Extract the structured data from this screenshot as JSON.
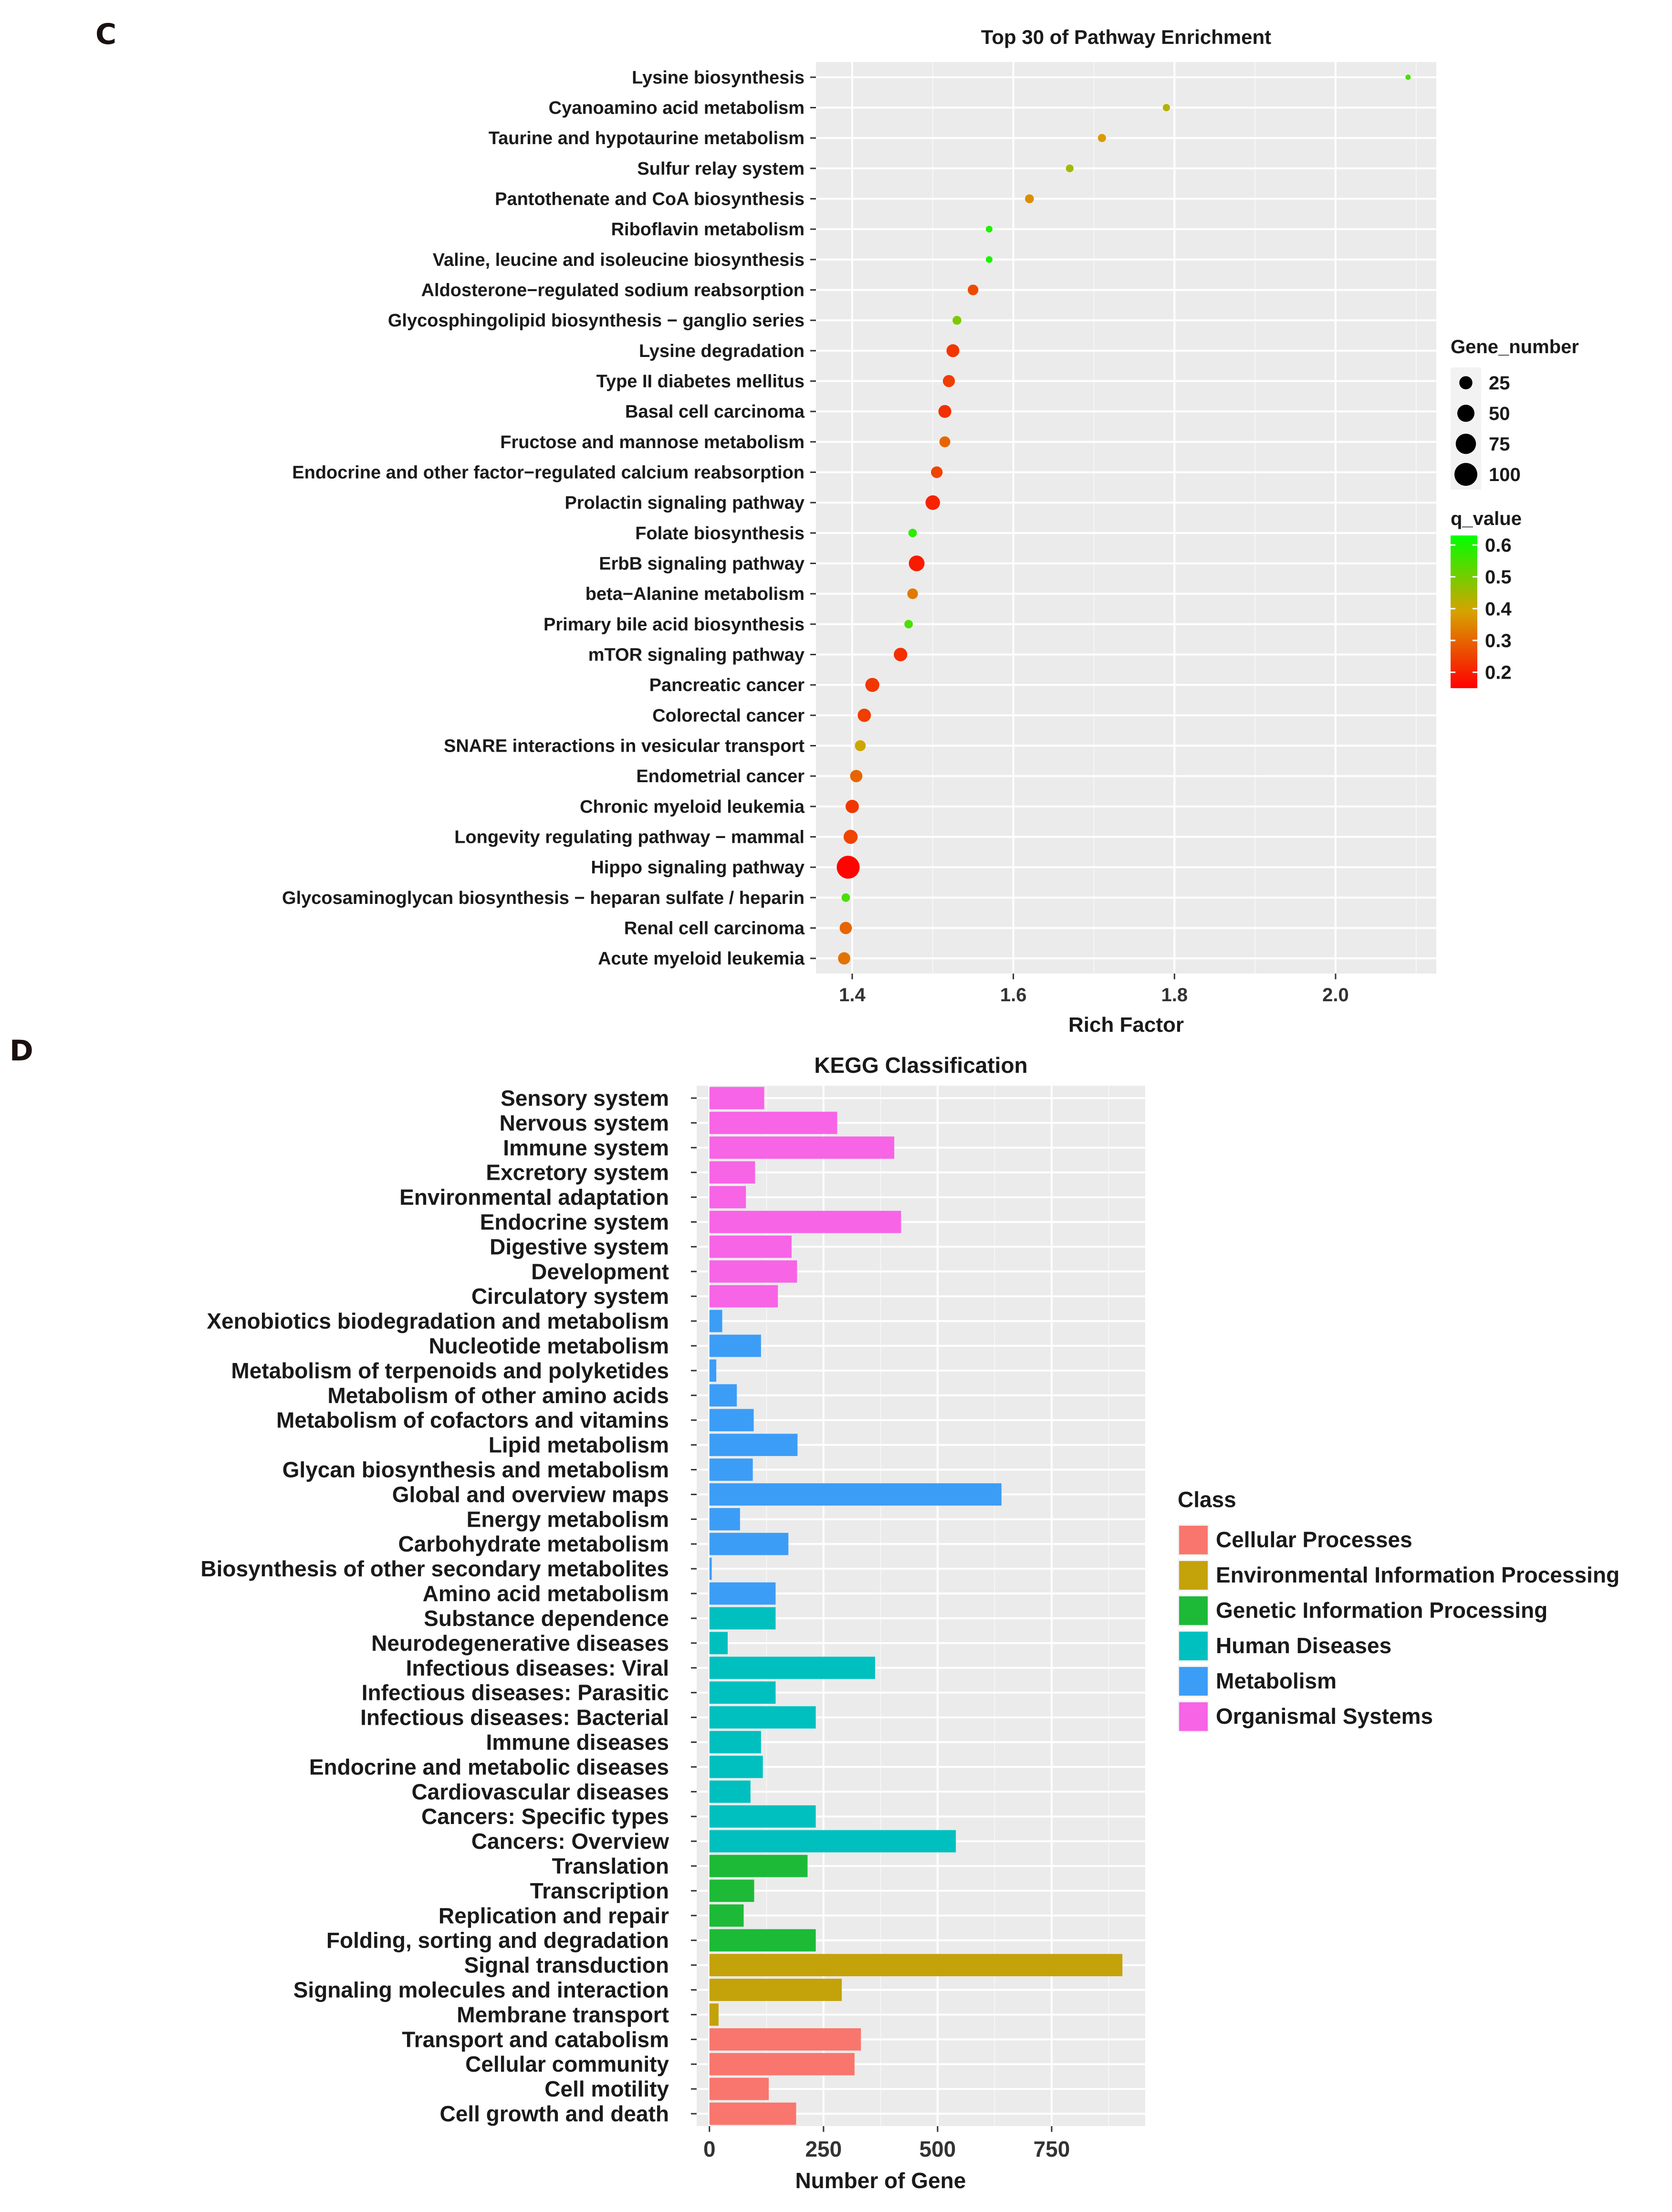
{
  "panel_labels": {
    "c": "C",
    "d": "D"
  },
  "chart_data": [
    {
      "type": "scatter",
      "title": "Top 30 of Pathway Enrichment",
      "xlabel": "Rich Factor",
      "ylabel": "",
      "xlim": [
        1.355,
        2.125
      ],
      "xticks": [
        1.4,
        1.6,
        1.8,
        2.0
      ],
      "xtick_labels": [
        "1.4",
        "1.6",
        "1.8",
        "2.0"
      ],
      "grid": true,
      "legend_position": "right",
      "size_legend": {
        "title": "Gene_number",
        "values": [
          25,
          50,
          75,
          100
        ],
        "labels": [
          "25",
          "50",
          "75",
          "100"
        ]
      },
      "color_legend": {
        "title": "q_value",
        "range": [
          0.15,
          0.63
        ],
        "ticks": [
          0.6,
          0.5,
          0.4,
          0.3,
          0.2
        ],
        "tick_labels": [
          "0.6",
          "0.5",
          "0.4",
          "0.3",
          "0.2"
        ],
        "low_color": "#ff0000",
        "mid_color": "#d7a200",
        "high_color": "#00ff00"
      },
      "points": [
        {
          "pathway": "Lysine biosynthesis",
          "rich_factor": 2.09,
          "gene_number": 1,
          "q_value": 0.55
        },
        {
          "pathway": "Cyanoamino acid metabolism",
          "rich_factor": 1.79,
          "gene_number": 4,
          "q_value": 0.43
        },
        {
          "pathway": "Taurine and hypotaurine metabolism",
          "rich_factor": 1.71,
          "gene_number": 6,
          "q_value": 0.38
        },
        {
          "pathway": "Sulfur relay system",
          "rich_factor": 1.67,
          "gene_number": 5,
          "q_value": 0.45
        },
        {
          "pathway": "Pantothenate and CoA biosynthesis",
          "rich_factor": 1.62,
          "gene_number": 8,
          "q_value": 0.36
        },
        {
          "pathway": "Riboflavin metabolism",
          "rich_factor": 1.57,
          "gene_number": 3,
          "q_value": 0.6
        },
        {
          "pathway": "Valine, leucine and isoleucine biosynthesis",
          "rich_factor": 1.57,
          "gene_number": 3,
          "q_value": 0.6
        },
        {
          "pathway": "Aldosterone−regulated sodium reabsorption",
          "rich_factor": 1.55,
          "gene_number": 14,
          "q_value": 0.26
        },
        {
          "pathway": "Glycosphingolipid biosynthesis − ganglio series",
          "rich_factor": 1.53,
          "gene_number": 8,
          "q_value": 0.49
        },
        {
          "pathway": "Lysine degradation",
          "rich_factor": 1.525,
          "gene_number": 24,
          "q_value": 0.23
        },
        {
          "pathway": "Type II diabetes mellitus",
          "rich_factor": 1.52,
          "gene_number": 20,
          "q_value": 0.24
        },
        {
          "pathway": "Basal cell carcinoma",
          "rich_factor": 1.515,
          "gene_number": 24,
          "q_value": 0.22
        },
        {
          "pathway": "Fructose and mannose metabolism",
          "rich_factor": 1.515,
          "gene_number": 15,
          "q_value": 0.3
        },
        {
          "pathway": "Endocrine and other factor−regulated calcium reabsorption",
          "rich_factor": 1.505,
          "gene_number": 18,
          "q_value": 0.25
        },
        {
          "pathway": "Prolactin signaling pathway",
          "rich_factor": 1.5,
          "gene_number": 33,
          "q_value": 0.2
        },
        {
          "pathway": "Folate biosynthesis",
          "rich_factor": 1.475,
          "gene_number": 7,
          "q_value": 0.58
        },
        {
          "pathway": "ErbB signaling pathway",
          "rich_factor": 1.48,
          "gene_number": 40,
          "q_value": 0.19
        },
        {
          "pathway": "beta−Alanine metabolism",
          "rich_factor": 1.475,
          "gene_number": 14,
          "q_value": 0.33
        },
        {
          "pathway": "Primary bile acid biosynthesis",
          "rich_factor": 1.47,
          "gene_number": 7,
          "q_value": 0.55
        },
        {
          "pathway": "mTOR signaling pathway",
          "rich_factor": 1.46,
          "gene_number": 27,
          "q_value": 0.22
        },
        {
          "pathway": "Pancreatic cancer",
          "rich_factor": 1.425,
          "gene_number": 30,
          "q_value": 0.23
        },
        {
          "pathway": "Colorectal cancer",
          "rich_factor": 1.415,
          "gene_number": 26,
          "q_value": 0.24
        },
        {
          "pathway": "SNARE interactions in vesicular transport",
          "rich_factor": 1.41,
          "gene_number": 15,
          "q_value": 0.4
        },
        {
          "pathway": "Endometrial cancer",
          "rich_factor": 1.405,
          "gene_number": 21,
          "q_value": 0.3
        },
        {
          "pathway": "Chronic myeloid leukemia",
          "rich_factor": 1.4,
          "gene_number": 26,
          "q_value": 0.23
        },
        {
          "pathway": "Longevity regulating pathway − mammal",
          "rich_factor": 1.398,
          "gene_number": 30,
          "q_value": 0.25
        },
        {
          "pathway": "Hippo signaling pathway",
          "rich_factor": 1.395,
          "gene_number": 100,
          "q_value": 0.155
        },
        {
          "pathway": "Glycosaminoglycan biosynthesis − heparan sulfate / heparin",
          "rich_factor": 1.392,
          "gene_number": 7,
          "q_value": 0.55
        },
        {
          "pathway": "Renal cell carcinoma",
          "rich_factor": 1.392,
          "gene_number": 21,
          "q_value": 0.3
        },
        {
          "pathway": "Acute myeloid leukemia",
          "rich_factor": 1.39,
          "gene_number": 21,
          "q_value": 0.32
        }
      ]
    },
    {
      "type": "bar",
      "orientation": "horizontal",
      "title": "KEGG Classification",
      "xlabel": "Number of Gene",
      "ylabel": "",
      "xlim": [
        -28,
        955
      ],
      "xticks": [
        0,
        250,
        500,
        750
      ],
      "xtick_labels": [
        "0",
        "250",
        "500",
        "750"
      ],
      "grid": true,
      "legend_position": "right",
      "legend_title": "Class",
      "classes": [
        {
          "name": "Cellular Processes",
          "color": "#f8766d"
        },
        {
          "name": "Environmental Information Processing",
          "color": "#c4a20a"
        },
        {
          "name": "Genetic Information Processing",
          "color": "#1dba38"
        },
        {
          "name": "Human Diseases",
          "color": "#00c0bf"
        },
        {
          "name": "Metabolism",
          "color": "#3c9df7"
        },
        {
          "name": "Organismal Systems",
          "color": "#f764e6"
        }
      ],
      "bars": [
        {
          "category": "Sensory system",
          "value": 120,
          "class": "Organismal Systems"
        },
        {
          "category": "Nervous system",
          "value": 280,
          "class": "Organismal Systems"
        },
        {
          "category": "Immune system",
          "value": 405,
          "class": "Organismal Systems"
        },
        {
          "category": "Excretory system",
          "value": 100,
          "class": "Organismal Systems"
        },
        {
          "category": "Environmental adaptation",
          "value": 80,
          "class": "Organismal Systems"
        },
        {
          "category": "Endocrine system",
          "value": 420,
          "class": "Organismal Systems"
        },
        {
          "category": "Digestive system",
          "value": 180,
          "class": "Organismal Systems"
        },
        {
          "category": "Development",
          "value": 192,
          "class": "Organismal Systems"
        },
        {
          "category": "Circulatory system",
          "value": 150,
          "class": "Organismal Systems"
        },
        {
          "category": "Xenobiotics biodegradation and metabolism",
          "value": 28,
          "class": "Metabolism"
        },
        {
          "category": "Nucleotide metabolism",
          "value": 113,
          "class": "Metabolism"
        },
        {
          "category": "Metabolism of terpenoids and polyketides",
          "value": 15,
          "class": "Metabolism"
        },
        {
          "category": "Metabolism of other amino acids",
          "value": 60,
          "class": "Metabolism"
        },
        {
          "category": "Metabolism of cofactors and vitamins",
          "value": 97,
          "class": "Metabolism"
        },
        {
          "category": "Lipid metabolism",
          "value": 193,
          "class": "Metabolism"
        },
        {
          "category": "Glycan biosynthesis and metabolism",
          "value": 95,
          "class": "Metabolism"
        },
        {
          "category": "Global and overview maps",
          "value": 640,
          "class": "Metabolism"
        },
        {
          "category": "Energy metabolism",
          "value": 67,
          "class": "Metabolism"
        },
        {
          "category": "Carbohydrate metabolism",
          "value": 173,
          "class": "Metabolism"
        },
        {
          "category": "Biosynthesis of other secondary metabolites",
          "value": 5,
          "class": "Metabolism"
        },
        {
          "category": "Amino acid metabolism",
          "value": 145,
          "class": "Metabolism"
        },
        {
          "category": "Substance dependence",
          "value": 145,
          "class": "Human Diseases"
        },
        {
          "category": "Neurodegenerative diseases",
          "value": 40,
          "class": "Human Diseases"
        },
        {
          "category": "Infectious diseases: Viral",
          "value": 363,
          "class": "Human Diseases"
        },
        {
          "category": "Infectious diseases: Parasitic",
          "value": 145,
          "class": "Human Diseases"
        },
        {
          "category": "Infectious diseases: Bacterial",
          "value": 233,
          "class": "Human Diseases"
        },
        {
          "category": "Immune diseases",
          "value": 113,
          "class": "Human Diseases"
        },
        {
          "category": "Endocrine and metabolic diseases",
          "value": 117,
          "class": "Human Diseases"
        },
        {
          "category": "Cardiovascular diseases",
          "value": 90,
          "class": "Human Diseases"
        },
        {
          "category": "Cancers: Specific types",
          "value": 233,
          "class": "Human Diseases"
        },
        {
          "category": "Cancers: Overview",
          "value": 540,
          "class": "Human Diseases"
        },
        {
          "category": "Translation",
          "value": 215,
          "class": "Genetic Information Processing"
        },
        {
          "category": "Transcription",
          "value": 98,
          "class": "Genetic Information Processing"
        },
        {
          "category": "Replication and repair",
          "value": 75,
          "class": "Genetic Information Processing"
        },
        {
          "category": "Folding, sorting and degradation",
          "value": 233,
          "class": "Genetic Information Processing"
        },
        {
          "category": "Signal transduction",
          "value": 905,
          "class": "Environmental Information Processing"
        },
        {
          "category": "Signaling molecules and interaction",
          "value": 290,
          "class": "Environmental Information Processing"
        },
        {
          "category": "Membrane transport",
          "value": 20,
          "class": "Environmental Information Processing"
        },
        {
          "category": "Transport and catabolism",
          "value": 332,
          "class": "Cellular Processes"
        },
        {
          "category": "Cellular community",
          "value": 318,
          "class": "Cellular Processes"
        },
        {
          "category": "Cell motility",
          "value": 130,
          "class": "Cellular Processes"
        },
        {
          "category": "Cell growth and death",
          "value": 190,
          "class": "Cellular Processes"
        }
      ]
    }
  ]
}
